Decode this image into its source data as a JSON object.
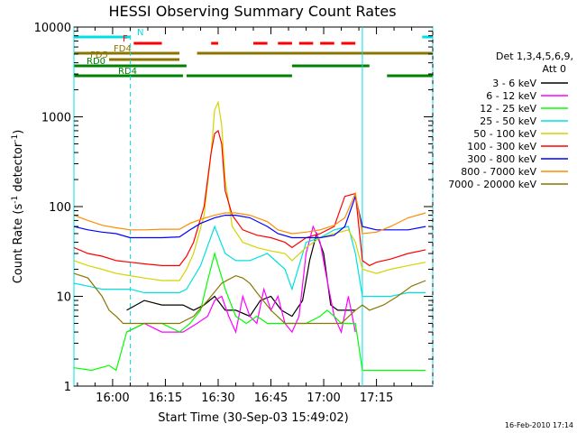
{
  "chart_data": {
    "type": "line",
    "title": "HESSI Observing Summary Count Rates",
    "xlabel": "Start Time (30-Sep-03 15:49:02)",
    "ylabel_main": "Count Rate (s",
    "ylabel_sup1": "-1",
    "ylabel_mid": " detector",
    "ylabel_sup2": "-1",
    "ylabel_end": ")",
    "yscale": "log",
    "ylim": [
      1,
      10000
    ],
    "xlim_minutes_after_1549": [
      0,
      102
    ],
    "x_ticks": [
      "16:00",
      "16:15",
      "16:30",
      "16:45",
      "17:00",
      "17:15"
    ],
    "x_tick_minutes": [
      11,
      26,
      41,
      56,
      71,
      86
    ],
    "y_ticks": [
      "1",
      "10",
      "100",
      "1000",
      "10000"
    ],
    "y_tick_values": [
      1,
      10,
      100,
      1000,
      10000
    ],
    "legend": {
      "header_line1": "Det 1,3,4,5,6,9,",
      "header_line2": "Att 0",
      "entries": [
        {
          "label": "3 - 6 keV",
          "color": "#000000"
        },
        {
          "label": "6 - 12 keV",
          "color": "#ff00ff"
        },
        {
          "label": "12 - 25 keV",
          "color": "#00ff00"
        },
        {
          "label": "25 - 50 keV",
          "color": "#00e0e0"
        },
        {
          "label": "50 - 100 keV",
          "color": "#d4d400"
        },
        {
          "label": "100 - 300 keV",
          "color": "#ff0000"
        },
        {
          "label": "300 - 800 keV",
          "color": "#0000ff"
        },
        {
          "label": "800 - 7000 keV",
          "color": "#ff8c00"
        },
        {
          "label": "7000 - 20000 keV",
          "color": "#8b7500"
        }
      ]
    },
    "flag_bars": [
      {
        "label": "N",
        "color": "#00e0e0",
        "segments": [
          [
            0,
            16
          ],
          [
            99,
            102
          ]
        ]
      },
      {
        "label": "F",
        "color": "#ff0000",
        "segments": [
          [
            17,
            25
          ],
          [
            39,
            41
          ],
          [
            51,
            55
          ],
          [
            58,
            62
          ],
          [
            64,
            68
          ],
          [
            70,
            74
          ],
          [
            76,
            80
          ]
        ]
      },
      {
        "label": "FD4",
        "color": "#8b7500",
        "segments": [
          [
            0,
            30
          ],
          [
            35,
            102
          ]
        ]
      },
      {
        "label": "FD5",
        "color": "#8b7500",
        "segments": [
          [
            10,
            30
          ]
        ]
      },
      {
        "label": "RD0",
        "color": "#008000",
        "segments": [
          [
            0,
            32
          ],
          [
            62,
            84
          ]
        ]
      },
      {
        "label": "RD4",
        "color": "#008000",
        "segments": [
          [
            0,
            31
          ],
          [
            32,
            62
          ],
          [
            89,
            102
          ]
        ]
      }
    ],
    "series": [
      {
        "name": "3 - 6 keV",
        "color": "#000000",
        "x": [
          15,
          20,
          25,
          31,
          34,
          37,
          40,
          43,
          46,
          50,
          53,
          56,
          59,
          62,
          65,
          67,
          69,
          71,
          73,
          75,
          78,
          80
        ],
        "y": [
          7,
          9,
          8,
          8,
          7,
          8,
          10,
          7,
          7,
          6,
          9,
          10,
          7,
          6,
          9,
          25,
          50,
          30,
          8,
          7,
          7,
          7
        ]
      },
      {
        "name": "6 - 12 keV",
        "color": "#ff00ff",
        "x": [
          15,
          20,
          25,
          31,
          35,
          38,
          40,
          42,
          44,
          46,
          48,
          50,
          52,
          54,
          56,
          58,
          60,
          62,
          64,
          66,
          68,
          70,
          72,
          74,
          76,
          78,
          80
        ],
        "y": [
          4,
          5,
          4,
          4,
          5,
          6,
          9,
          10,
          6,
          4,
          10,
          6,
          5,
          12,
          7,
          10,
          5,
          4,
          6,
          30,
          60,
          40,
          15,
          6,
          4,
          10,
          4
        ]
      },
      {
        "name": "12 - 25 keV",
        "color": "#00ff00",
        "x": [
          0,
          5,
          10,
          12,
          15,
          20,
          25,
          30,
          33,
          36,
          38,
          40,
          43,
          46,
          49,
          52,
          55,
          58,
          62,
          66,
          70,
          72,
          74,
          76,
          78,
          80,
          82,
          86,
          90,
          95,
          100
        ],
        "y": [
          1.6,
          1.5,
          1.7,
          1.5,
          4,
          5,
          5,
          4,
          5,
          7,
          15,
          30,
          12,
          6,
          5,
          6,
          5,
          5,
          5,
          5,
          6,
          7,
          6,
          5,
          5,
          5,
          1.5,
          1.5,
          1.5,
          1.5,
          1.5
        ]
      },
      {
        "name": "25 - 50 keV",
        "color": "#00e0e0",
        "x": [
          0,
          4,
          8,
          12,
          16,
          20,
          25,
          30,
          32,
          36,
          40,
          43,
          46,
          50,
          55,
          60,
          62,
          66,
          70,
          74,
          78,
          80,
          82,
          86,
          90,
          95,
          100
        ],
        "y": [
          14,
          13,
          12,
          12,
          12,
          11,
          11,
          11,
          12,
          22,
          60,
          30,
          25,
          25,
          30,
          20,
          12,
          40,
          45,
          55,
          60,
          30,
          10,
          10,
          10,
          11,
          11
        ]
      },
      {
        "name": "50 - 100 keV",
        "color": "#d4d400",
        "x": [
          0,
          4,
          8,
          12,
          16,
          20,
          25,
          30,
          32,
          34,
          37,
          39,
          40,
          41,
          42,
          43,
          45,
          48,
          52,
          56,
          60,
          62,
          66,
          70,
          74,
          78,
          80,
          82,
          86,
          90,
          95,
          100
        ],
        "y": [
          25,
          22,
          20,
          18,
          17,
          16,
          15,
          15,
          20,
          30,
          80,
          400,
          1200,
          1450,
          800,
          200,
          60,
          40,
          35,
          32,
          30,
          25,
          35,
          45,
          50,
          55,
          40,
          20,
          18,
          20,
          22,
          24
        ]
      },
      {
        "name": "100 - 300 keV",
        "color": "#ff0000",
        "x": [
          0,
          4,
          8,
          12,
          16,
          20,
          25,
          30,
          32,
          34,
          37,
          39,
          40,
          41,
          42,
          43,
          45,
          48,
          52,
          56,
          60,
          62,
          66,
          70,
          74,
          77,
          80,
          82,
          84,
          86,
          90,
          95,
          100
        ],
        "y": [
          35,
          30,
          28,
          25,
          24,
          23,
          22,
          22,
          28,
          40,
          100,
          400,
          650,
          700,
          500,
          150,
          80,
          55,
          48,
          45,
          40,
          35,
          45,
          50,
          60,
          130,
          140,
          25,
          22,
          24,
          26,
          30,
          33
        ]
      },
      {
        "name": "300 - 800 keV",
        "color": "#0000ff",
        "x": [
          0,
          4,
          8,
          12,
          16,
          20,
          25,
          30,
          33,
          36,
          40,
          43,
          46,
          50,
          55,
          58,
          62,
          66,
          70,
          74,
          77,
          80,
          82,
          86,
          90,
          95,
          100
        ],
        "y": [
          60,
          55,
          52,
          50,
          45,
          45,
          45,
          46,
          55,
          65,
          75,
          80,
          80,
          75,
          60,
          50,
          45,
          45,
          45,
          48,
          60,
          130,
          60,
          55,
          55,
          55,
          60
        ]
      },
      {
        "name": "800 - 7000 keV",
        "color": "#ff8c00",
        "x": [
          0,
          4,
          8,
          12,
          16,
          20,
          25,
          30,
          33,
          36,
          40,
          43,
          46,
          50,
          55,
          58,
          62,
          66,
          70,
          74,
          77,
          80,
          82,
          86,
          90,
          95,
          100
        ],
        "y": [
          80,
          70,
          62,
          58,
          55,
          55,
          56,
          56,
          65,
          72,
          80,
          85,
          85,
          80,
          68,
          55,
          50,
          52,
          55,
          62,
          75,
          140,
          50,
          52,
          60,
          75,
          85
        ]
      },
      {
        "name": "7000 - 20000 keV",
        "color": "#8b7500",
        "x": [
          0,
          4,
          8,
          10,
          12,
          14,
          18,
          22,
          26,
          30,
          34,
          38,
          42,
          46,
          48,
          50,
          52,
          56,
          60,
          64,
          68,
          72,
          76,
          80,
          82,
          84,
          88,
          92,
          96,
          100
        ],
        "y": [
          18,
          16,
          10,
          7,
          6,
          5,
          5,
          5,
          5,
          5,
          6,
          9,
          14,
          17,
          16,
          14,
          11,
          7,
          5,
          5,
          5,
          5,
          5,
          7,
          8,
          7,
          8,
          10,
          13,
          15
        ]
      }
    ],
    "vlines_cyan_solid_minutes": [
      0,
      82
    ],
    "vlines_cyan_dashed_minutes": [
      16,
      102
    ]
  },
  "footer": {
    "date_stamp": "16-Feb-2010 17:14"
  }
}
